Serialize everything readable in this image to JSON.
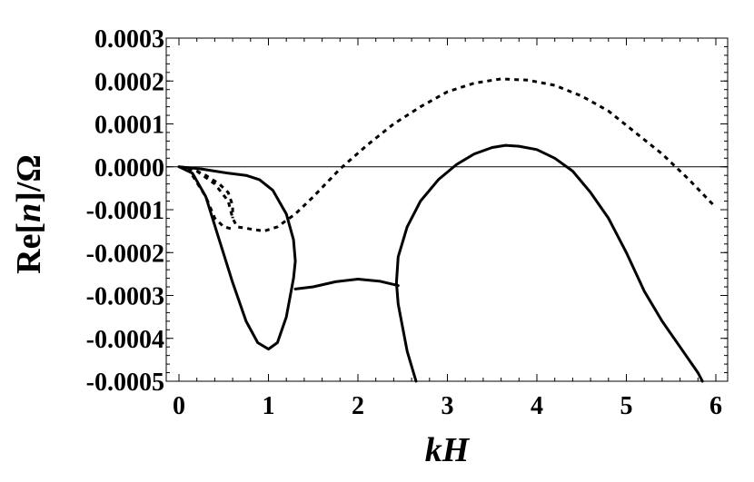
{
  "chart_data": {
    "type": "line",
    "xlabel_parts": [
      {
        "text": "kH",
        "italic": true
      }
    ],
    "ylabel_parts": [
      {
        "text": "Re[",
        "italic": false
      },
      {
        "text": "n",
        "italic": true
      },
      {
        "text": "]/Ω",
        "italic": false
      }
    ],
    "xlim": [
      0,
      6
    ],
    "ylim": [
      -0.0005,
      0.0003
    ],
    "x_ticks": [
      {
        "value": 0,
        "label": "0"
      },
      {
        "value": 1,
        "label": "1"
      },
      {
        "value": 2,
        "label": "2"
      },
      {
        "value": 3,
        "label": "3"
      },
      {
        "value": 4,
        "label": "4"
      },
      {
        "value": 5,
        "label": "5"
      },
      {
        "value": 6,
        "label": "6"
      }
    ],
    "y_ticks": [
      {
        "value": 0.0003,
        "label": "0.0003"
      },
      {
        "value": 0.0002,
        "label": "0.0002"
      },
      {
        "value": 0.0001,
        "label": "0.0001"
      },
      {
        "value": 0.0,
        "label": "0.0000"
      },
      {
        "value": -0.0001,
        "label": "-0.0001"
      },
      {
        "value": -0.0002,
        "label": "-0.0002"
      },
      {
        "value": -0.0003,
        "label": "-0.0003"
      },
      {
        "value": -0.0004,
        "label": "-0.0004"
      },
      {
        "value": -0.0005,
        "label": "-0.0005"
      }
    ],
    "x_minor_step": 0.2,
    "y_minor_step": 2e-05,
    "zero_line": true,
    "grid": false,
    "series": [
      {
        "style": "solid",
        "color": "#000000",
        "points": [
          [
            0,
            0
          ],
          [
            0.15,
            -1.5e-05
          ],
          [
            0.3,
            -7e-05
          ],
          [
            0.45,
            -0.00017
          ],
          [
            0.6,
            -0.00027
          ],
          [
            0.75,
            -0.00036
          ],
          [
            0.88,
            -0.00041
          ],
          [
            1.0,
            -0.000425
          ],
          [
            1.1,
            -0.00041
          ],
          [
            1.2,
            -0.00035
          ],
          [
            1.28,
            -0.00026
          ],
          [
            1.3,
            -0.00022
          ],
          [
            1.28,
            -0.00017
          ],
          [
            1.2,
            -0.00011
          ],
          [
            1.05,
            -5.5e-05
          ],
          [
            0.9,
            -3e-05
          ],
          [
            0.75,
            -2e-05
          ],
          [
            0.55,
            -1.5e-05
          ],
          [
            0.4,
            -1e-05
          ],
          [
            0.25,
            -5e-06
          ],
          [
            0,
            0
          ]
        ]
      },
      {
        "style": "solid",
        "color": "#000000",
        "points": [
          [
            1.3,
            -0.000285
          ],
          [
            1.5,
            -0.00028
          ],
          [
            1.75,
            -0.000268
          ],
          [
            2.0,
            -0.000262
          ],
          [
            2.25,
            -0.000267
          ],
          [
            2.45,
            -0.000277
          ]
        ]
      },
      {
        "style": "solid",
        "color": "#000000",
        "points": [
          [
            2.65,
            -0.0005
          ],
          [
            2.55,
            -0.00043
          ],
          [
            2.45,
            -0.00032
          ],
          [
            2.43,
            -0.00027
          ],
          [
            2.45,
            -0.00021
          ],
          [
            2.55,
            -0.00014
          ],
          [
            2.7,
            -8e-05
          ],
          [
            2.9,
            -3e-05
          ],
          [
            3.1,
            5e-06
          ],
          [
            3.3,
            3e-05
          ],
          [
            3.5,
            4.5e-05
          ],
          [
            3.65,
            5e-05
          ],
          [
            3.8,
            4.8e-05
          ],
          [
            4.0,
            4e-05
          ],
          [
            4.2,
            2e-05
          ],
          [
            4.4,
            -1e-05
          ],
          [
            4.6,
            -6e-05
          ],
          [
            4.8,
            -0.00012
          ],
          [
            5.0,
            -0.0002
          ],
          [
            5.2,
            -0.00029
          ],
          [
            5.4,
            -0.00036
          ],
          [
            5.6,
            -0.00042
          ],
          [
            5.8,
            -0.00048
          ],
          [
            5.85,
            -0.0005
          ]
        ]
      },
      {
        "style": "dashed",
        "color": "#000000",
        "points": [
          [
            0,
            0
          ],
          [
            0.2,
            -1e-05
          ],
          [
            0.4,
            -4e-05
          ],
          [
            0.55,
            -8e-05
          ],
          [
            0.6,
            -0.00012
          ],
          [
            0.65,
            -0.00014
          ],
          [
            0.8,
            -0.000145
          ],
          [
            0.95,
            -0.00015
          ],
          [
            1.1,
            -0.00014
          ],
          [
            1.3,
            -0.00011
          ],
          [
            1.5,
            -7e-05
          ],
          [
            1.8,
            -5e-06
          ],
          [
            2.1,
            5e-05
          ],
          [
            2.4,
            0.0001
          ],
          [
            2.7,
            0.00014
          ],
          [
            3.0,
            0.000175
          ],
          [
            3.3,
            0.000195
          ],
          [
            3.6,
            0.000205
          ],
          [
            3.9,
            0.000202
          ],
          [
            4.2,
            0.00019
          ],
          [
            4.5,
            0.000165
          ],
          [
            4.8,
            0.00013
          ],
          [
            5.1,
            8e-05
          ],
          [
            5.4,
            3e-05
          ],
          [
            5.7,
            -3e-05
          ],
          [
            6.0,
            -9.5e-05
          ]
        ]
      },
      {
        "style": "dashed",
        "color": "#000000",
        "points": [
          [
            0,
            0
          ],
          [
            0.15,
            -5e-06
          ],
          [
            0.3,
            -2e-05
          ],
          [
            0.45,
            -4e-05
          ],
          [
            0.55,
            -6e-05
          ],
          [
            0.6,
            -9e-05
          ],
          [
            0.6,
            -0.00012
          ]
        ]
      },
      {
        "style": "dashed",
        "color": "#000000",
        "points": [
          [
            0.15,
            -2e-05
          ],
          [
            0.3,
            -7e-05
          ],
          [
            0.4,
            -0.00012
          ],
          [
            0.5,
            -0.00014
          ],
          [
            0.6,
            -0.000145
          ]
        ]
      }
    ]
  }
}
